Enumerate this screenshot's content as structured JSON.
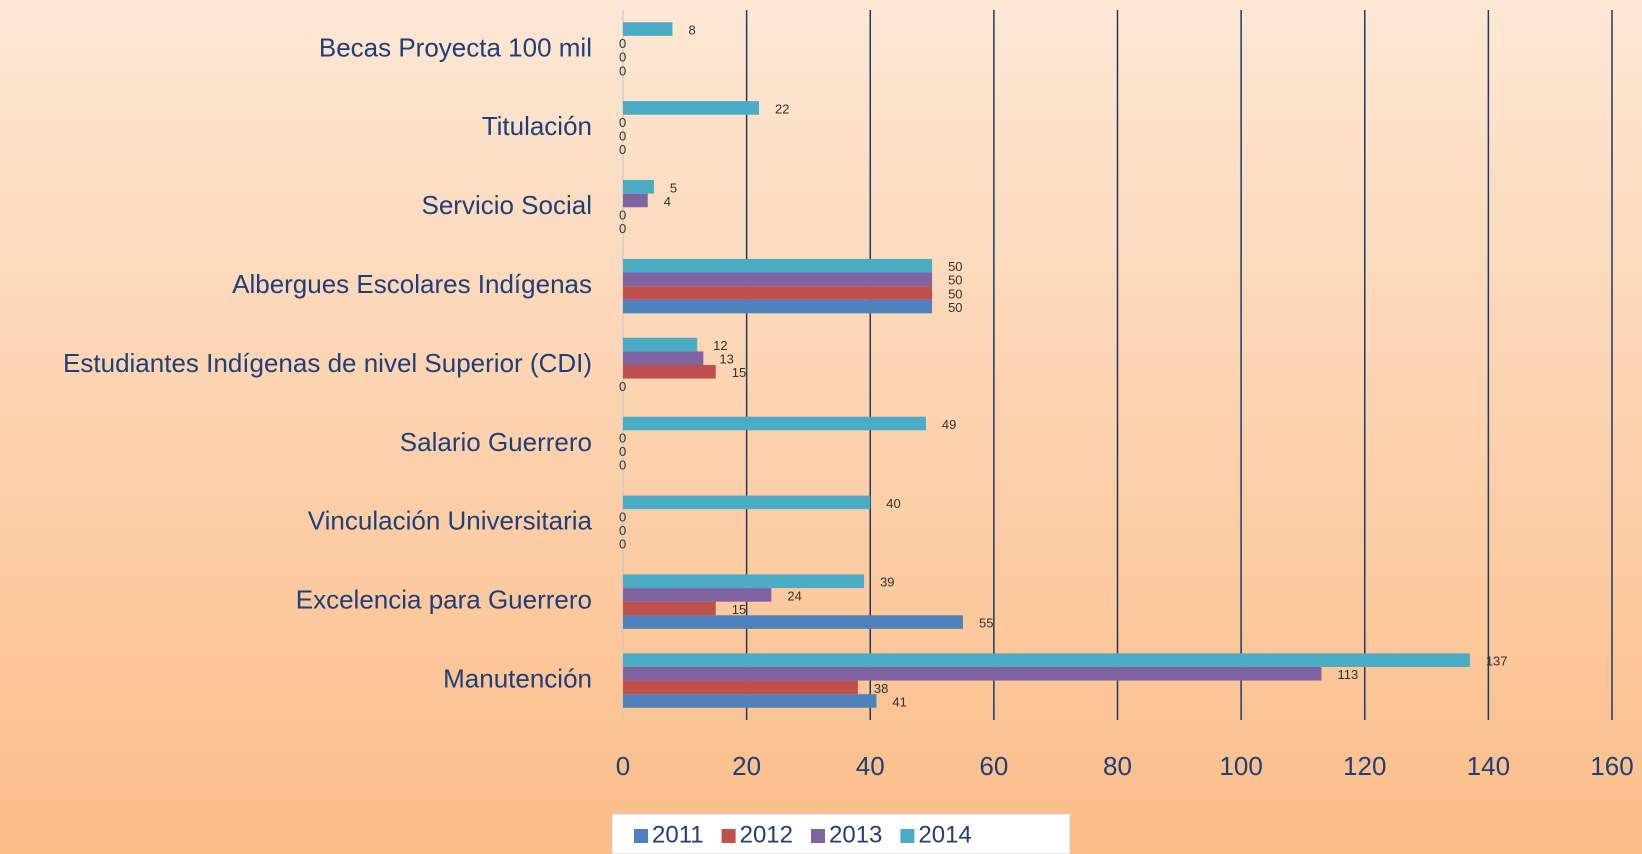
{
  "chart_data": {
    "type": "bar",
    "orientation": "horizontal",
    "categories": [
      "Becas Proyecta 100 mil",
      "Titulación",
      "Servicio Social",
      "Albergues Escolares Indígenas",
      "Estudiantes Indígenas de nivel Superior (CDI)",
      "Salario Guerrero",
      "Vinculación Universitaria",
      "Excelencia para Guerrero",
      "Manutención"
    ],
    "series": [
      {
        "name": "2011",
        "color": "#4f81bd",
        "values": [
          0,
          0,
          0,
          50,
          0,
          0,
          0,
          55,
          41
        ]
      },
      {
        "name": "2012",
        "color": "#c0504d",
        "values": [
          0,
          0,
          0,
          50,
          15,
          0,
          0,
          15,
          38
        ]
      },
      {
        "name": "2013",
        "color": "#8064a2",
        "values": [
          0,
          0,
          4,
          50,
          13,
          0,
          0,
          24,
          113
        ]
      },
      {
        "name": "2014",
        "color": "#4bacc6",
        "values": [
          8,
          22,
          5,
          50,
          12,
          49,
          40,
          39,
          137
        ]
      }
    ],
    "xlim": [
      0,
      160
    ],
    "xticks": [
      0,
      20,
      40,
      60,
      80,
      100,
      120,
      140,
      160
    ],
    "grid": true,
    "legend": "bottom"
  }
}
